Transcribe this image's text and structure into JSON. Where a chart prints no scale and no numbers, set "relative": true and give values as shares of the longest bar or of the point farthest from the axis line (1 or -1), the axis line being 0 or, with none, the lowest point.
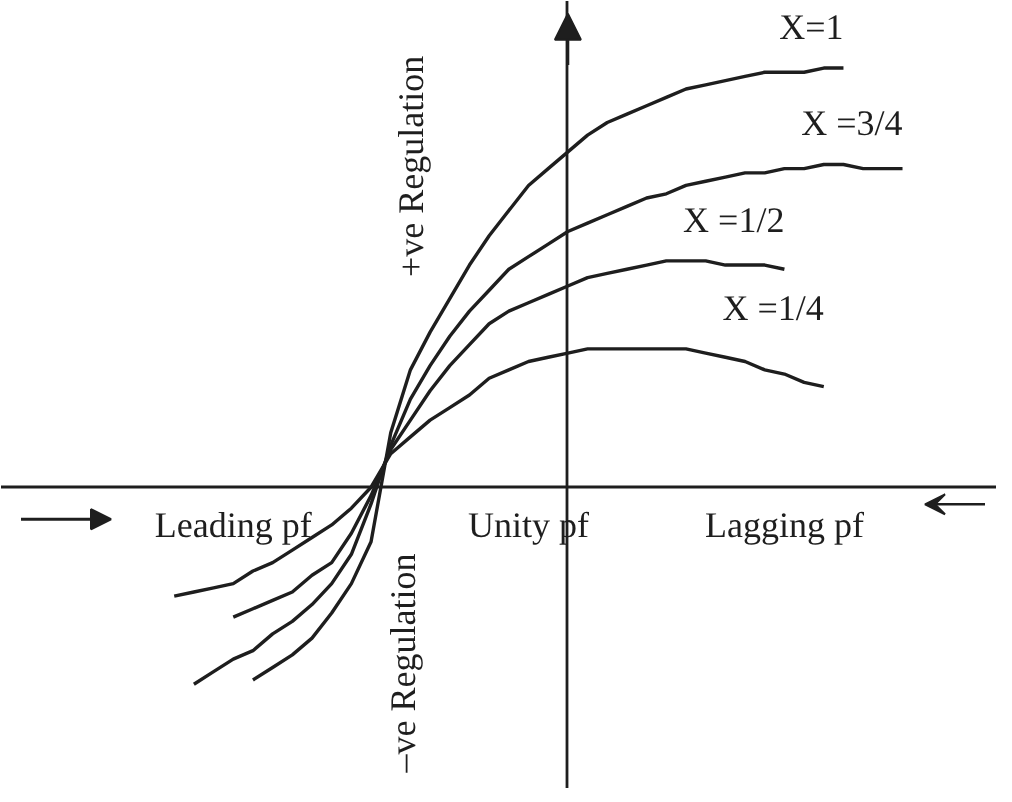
{
  "chart_data": {
    "type": "line",
    "relative": true,
    "line_style": "solid",
    "categories": [
      null,
      null,
      null,
      "Leading pf",
      null,
      null,
      null,
      null,
      null,
      null,
      null,
      null,
      null,
      null,
      null,
      null,
      null,
      null,
      "Unity pf",
      null,
      null,
      null,
      null,
      null,
      null,
      null,
      null,
      null,
      null,
      null,
      null,
      "Lagging pf",
      null,
      null,
      null,
      null,
      null,
      null,
      null,
      null,
      null
    ],
    "series": [
      {
        "name": "X=1",
        "color": "#1e1e1e",
        "values": [
          null,
          null,
          null,
          null,
          -0.46,
          -0.43,
          -0.4,
          -0.36,
          -0.3,
          -0.23,
          -0.13,
          0.13,
          0.28,
          0.37,
          0.45,
          0.53,
          0.6,
          0.66,
          0.72,
          0.76,
          0.8,
          0.84,
          0.87,
          0.89,
          0.91,
          0.93,
          0.95,
          0.96,
          0.97,
          0.98,
          0.99,
          0.99,
          0.99,
          1.0,
          1.0,
          null,
          null,
          null,
          null,
          null,
          null
        ]
      },
      {
        "name": "X =3/4",
        "color": "#1e1e1e",
        "values": [
          null,
          -0.47,
          -0.44,
          -0.41,
          -0.39,
          -0.35,
          -0.32,
          -0.28,
          -0.23,
          -0.16,
          -0.04,
          0.1,
          0.21,
          0.29,
          0.36,
          0.42,
          0.47,
          0.52,
          0.55,
          0.58,
          0.61,
          0.63,
          0.65,
          0.67,
          0.69,
          0.7,
          0.72,
          0.73,
          0.74,
          0.75,
          0.75,
          0.76,
          0.76,
          0.77,
          0.77,
          0.76,
          0.76,
          0.76,
          null,
          null,
          null
        ]
      },
      {
        "name": "X =1/2",
        "color": "#1e1e1e",
        "values": [
          null,
          null,
          null,
          -0.31,
          -0.29,
          -0.27,
          -0.25,
          -0.21,
          -0.18,
          -0.11,
          -0.02,
          0.09,
          0.16,
          0.23,
          0.29,
          0.34,
          0.39,
          0.42,
          0.44,
          0.46,
          0.48,
          0.5,
          0.51,
          0.52,
          0.53,
          0.54,
          0.54,
          0.54,
          0.53,
          0.53,
          0.53,
          0.52,
          null,
          null,
          null,
          null,
          null,
          null,
          null,
          null,
          null
        ]
      },
      {
        "name": "X =1/4",
        "color": "#1e1e1e",
        "values": [
          -0.26,
          -0.25,
          -0.24,
          -0.23,
          -0.2,
          -0.18,
          -0.15,
          -0.12,
          -0.09,
          -0.05,
          0.0,
          0.08,
          0.12,
          0.16,
          0.19,
          0.22,
          0.26,
          0.28,
          0.3,
          0.31,
          0.32,
          0.33,
          0.33,
          0.33,
          0.33,
          0.33,
          0.33,
          0.32,
          0.31,
          0.3,
          0.28,
          0.27,
          0.25,
          0.24,
          null,
          null,
          null,
          null,
          null,
          null,
          null
        ]
      }
    ],
    "annotations": [
      "+ve Regulation",
      "–ve Regulation"
    ]
  }
}
